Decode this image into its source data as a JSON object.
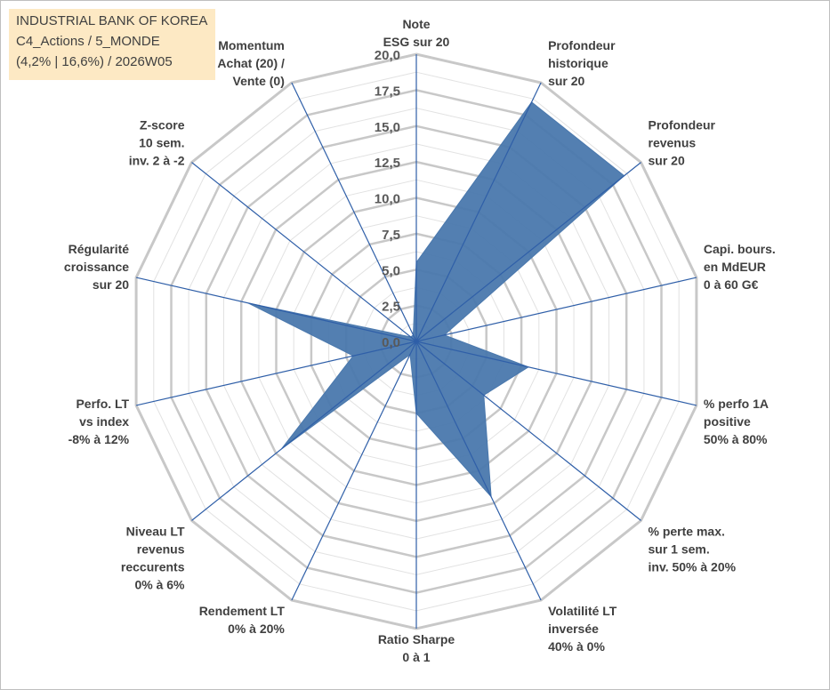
{
  "title_box": {
    "line1": "INDUSTRIAL BANK OF KOREA",
    "line2": "C4_Actions / 5_MONDE",
    "line3": "(4,2% | 16,6%) / 2026W05"
  },
  "chart_data": {
    "type": "radar",
    "r_min": 0,
    "r_max": 20,
    "ticks": [
      "0,0",
      "2,5",
      "5,0",
      "7,5",
      "10,0",
      "12,5",
      "15,0",
      "17,5",
      "20,0"
    ],
    "tick_values": [
      0,
      2.5,
      5,
      7.5,
      10,
      12.5,
      15,
      17.5,
      20
    ],
    "minor_gridlines": 16,
    "axes": [
      {
        "label": [
          "Note",
          "ESG sur 20"
        ],
        "value": 5.5
      },
      {
        "label": [
          "Profondeur",
          "historique",
          "sur 20"
        ],
        "value": 18.5
      },
      {
        "label": [
          "Profondeur",
          "revenus",
          "sur 20"
        ],
        "value": 18.5
      },
      {
        "label": [
          "Capi. bours.",
          "en MdEUR",
          "0 à 60 G€"
        ],
        "value": 2.0
      },
      {
        "label": [
          "% perfo 1A",
          "positive",
          "50% à 80%"
        ],
        "value": 8.0
      },
      {
        "label": [
          "% perte max.",
          "sur 1 sem.",
          "inv. 50% à 20%"
        ],
        "value": 6.0
      },
      {
        "label": [
          "Volatilité LT",
          "inversée",
          "40% à 0%"
        ],
        "value": 12.0
      },
      {
        "label": [
          "Ratio Sharpe",
          "0 à 1"
        ],
        "value": 5.0
      },
      {
        "label": [
          "Rendement LT",
          "0% à 20%"
        ],
        "value": 1.0
      },
      {
        "label": [
          "Niveau LT",
          "revenus",
          "reccurents",
          "0% à 6%"
        ],
        "value": 12.0
      },
      {
        "label": [
          "Perfo. LT",
          "vs index",
          "-8% à 12%"
        ],
        "value": 4.5
      },
      {
        "label": [
          "Régularité",
          "croissance",
          "sur 20"
        ],
        "value": 12.0
      },
      {
        "label": [
          "Z-score",
          "10 sem.",
          "inv. 2 à -2"
        ],
        "value": 0.5
      },
      {
        "label": [
          "Momentum",
          "Achat (20) /",
          "Vente (0)"
        ],
        "value": 0.5
      }
    ],
    "series": [
      {
        "values": [
          5.5,
          18.5,
          18.5,
          2.0,
          8.0,
          6.0,
          12.0,
          5.0,
          1.0,
          12.0,
          4.5,
          12.0,
          0.5,
          0.5
        ]
      }
    ],
    "colors": {
      "fill": "#4a78ad",
      "axis": "#2f5fa8",
      "grid": "#c8c8c8",
      "minor_grid": "#e2e2e2"
    }
  }
}
